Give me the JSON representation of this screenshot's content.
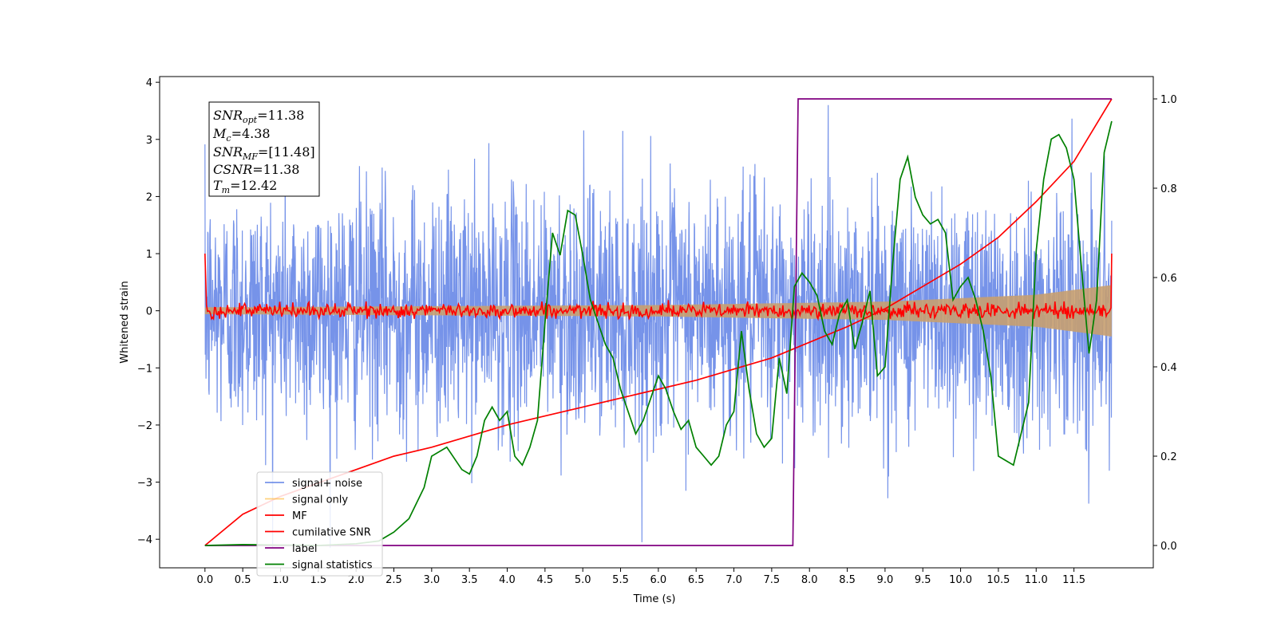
{
  "chart_data": {
    "type": "line",
    "title": "",
    "xlabel": "Time (s)",
    "ylabel": "Whitened strain",
    "ylabel_right": "",
    "xlim": [
      -0.6,
      12.55
    ],
    "ylim": [
      -4.5,
      4.1
    ],
    "ylim_right": [
      -0.05,
      1.05
    ],
    "x_ticks": [
      "0.0",
      "0.5",
      "1.0",
      "1.5",
      "2.0",
      "2.5",
      "3.0",
      "3.5",
      "4.0",
      "4.5",
      "5.0",
      "5.5",
      "6.0",
      "6.5",
      "7.0",
      "7.5",
      "8.0",
      "8.5",
      "9.0",
      "9.5",
      "10.0",
      "10.5",
      "11.0",
      "11.5"
    ],
    "y_ticks": [
      "4",
      "3",
      "2",
      "1",
      "0",
      "−1",
      "−2",
      "−3",
      "−4"
    ],
    "y_ticks_right": [
      "1.0",
      "0.8",
      "0.6",
      "0.4",
      "0.2",
      "0.0"
    ],
    "grid": false,
    "legend_position": "bottom-left",
    "annotation": {
      "snr_opt": {
        "base": "SNR",
        "sub": "opt",
        "value": "=11.38"
      },
      "mc": {
        "base": "M",
        "sub": "c",
        "value": "=4.38"
      },
      "snr_mf": {
        "base": "SNR",
        "sub": "MF",
        "value": "=[11.48]"
      },
      "csnr": {
        "base": "CSNR",
        "value": "=11.38"
      },
      "tm": {
        "base": "T",
        "sub": "m",
        "value": "=12.42"
      }
    },
    "series": [
      {
        "name": "signal+ noise",
        "color": "#4169e1",
        "axis": "left",
        "description_values": "noise band approx ±1 std, extremes ~±3.7"
      },
      {
        "name": "signal only",
        "color": "#ffa500",
        "axis": "left",
        "envelope": [
          [
            0.0,
            0.06
          ],
          [
            6.0,
            0.1
          ],
          [
            9.0,
            0.16
          ],
          [
            11.0,
            0.28
          ],
          [
            12.0,
            0.45
          ]
        ]
      },
      {
        "name": "MF",
        "color": "#ff0000",
        "axis": "left",
        "values_note": "fluctuates around 0 within ±0.2, spikes to 1.0 at edges"
      },
      {
        "name": "cumilative SNR",
        "color": "#ff0000",
        "axis": "right",
        "x": [
          0.0,
          0.5,
          1.0,
          1.5,
          2.0,
          2.5,
          3.0,
          3.5,
          4.0,
          4.5,
          5.0,
          5.5,
          6.0,
          6.5,
          7.0,
          7.5,
          8.0,
          8.5,
          9.0,
          9.5,
          10.0,
          10.5,
          11.0,
          11.5,
          12.0
        ],
        "values": [
          0.0,
          0.07,
          0.11,
          0.14,
          0.17,
          0.2,
          0.22,
          0.245,
          0.27,
          0.29,
          0.31,
          0.33,
          0.35,
          0.37,
          0.395,
          0.42,
          0.455,
          0.49,
          0.53,
          0.58,
          0.63,
          0.69,
          0.77,
          0.86,
          1.0
        ]
      },
      {
        "name": "label",
        "color": "#800080",
        "axis": "right",
        "x": [
          0.0,
          7.78,
          7.78,
          7.85,
          12.0
        ],
        "values": [
          0.0,
          0.0,
          0.0,
          1.0,
          1.0
        ]
      },
      {
        "name": "signal statistics",
        "color": "#008000",
        "axis": "right",
        "x": [
          0.0,
          0.5,
          1.0,
          1.5,
          2.0,
          2.3,
          2.5,
          2.7,
          2.9,
          3.0,
          3.2,
          3.4,
          3.5,
          3.6,
          3.7,
          3.8,
          3.9,
          4.0,
          4.1,
          4.2,
          4.3,
          4.4,
          4.5,
          4.6,
          4.7,
          4.8,
          4.9,
          5.0,
          5.1,
          5.2,
          5.3,
          5.4,
          5.5,
          5.6,
          5.7,
          5.8,
          5.9,
          6.0,
          6.1,
          6.2,
          6.3,
          6.4,
          6.5,
          6.6,
          6.7,
          6.8,
          6.9,
          7.0,
          7.1,
          7.2,
          7.3,
          7.4,
          7.5,
          7.6,
          7.7,
          7.8,
          7.9,
          8.0,
          8.1,
          8.2,
          8.3,
          8.4,
          8.5,
          8.6,
          8.7,
          8.8,
          8.9,
          9.0,
          9.1,
          9.2,
          9.3,
          9.4,
          9.5,
          9.6,
          9.7,
          9.8,
          9.9,
          10.0,
          10.1,
          10.2,
          10.3,
          10.4,
          10.5,
          10.6,
          10.7,
          10.8,
          10.9,
          11.0,
          11.1,
          11.2,
          11.3,
          11.4,
          11.5,
          11.6,
          11.7,
          11.8,
          11.9,
          12.0
        ],
        "values": [
          0.0,
          0.002,
          0.001,
          0.0,
          0.004,
          0.01,
          0.03,
          0.06,
          0.13,
          0.2,
          0.22,
          0.17,
          0.16,
          0.2,
          0.28,
          0.31,
          0.28,
          0.3,
          0.2,
          0.18,
          0.22,
          0.28,
          0.5,
          0.7,
          0.65,
          0.75,
          0.74,
          0.65,
          0.55,
          0.5,
          0.45,
          0.42,
          0.35,
          0.3,
          0.25,
          0.28,
          0.33,
          0.38,
          0.35,
          0.3,
          0.26,
          0.28,
          0.22,
          0.2,
          0.18,
          0.2,
          0.27,
          0.3,
          0.48,
          0.35,
          0.25,
          0.22,
          0.24,
          0.42,
          0.34,
          0.58,
          0.61,
          0.59,
          0.56,
          0.48,
          0.45,
          0.52,
          0.55,
          0.44,
          0.5,
          0.57,
          0.38,
          0.4,
          0.63,
          0.82,
          0.87,
          0.78,
          0.74,
          0.72,
          0.73,
          0.7,
          0.55,
          0.58,
          0.6,
          0.55,
          0.48,
          0.38,
          0.2,
          0.19,
          0.18,
          0.25,
          0.32,
          0.66,
          0.82,
          0.91,
          0.92,
          0.89,
          0.82,
          0.62,
          0.43,
          0.55,
          0.88,
          0.95
        ]
      }
    ]
  }
}
